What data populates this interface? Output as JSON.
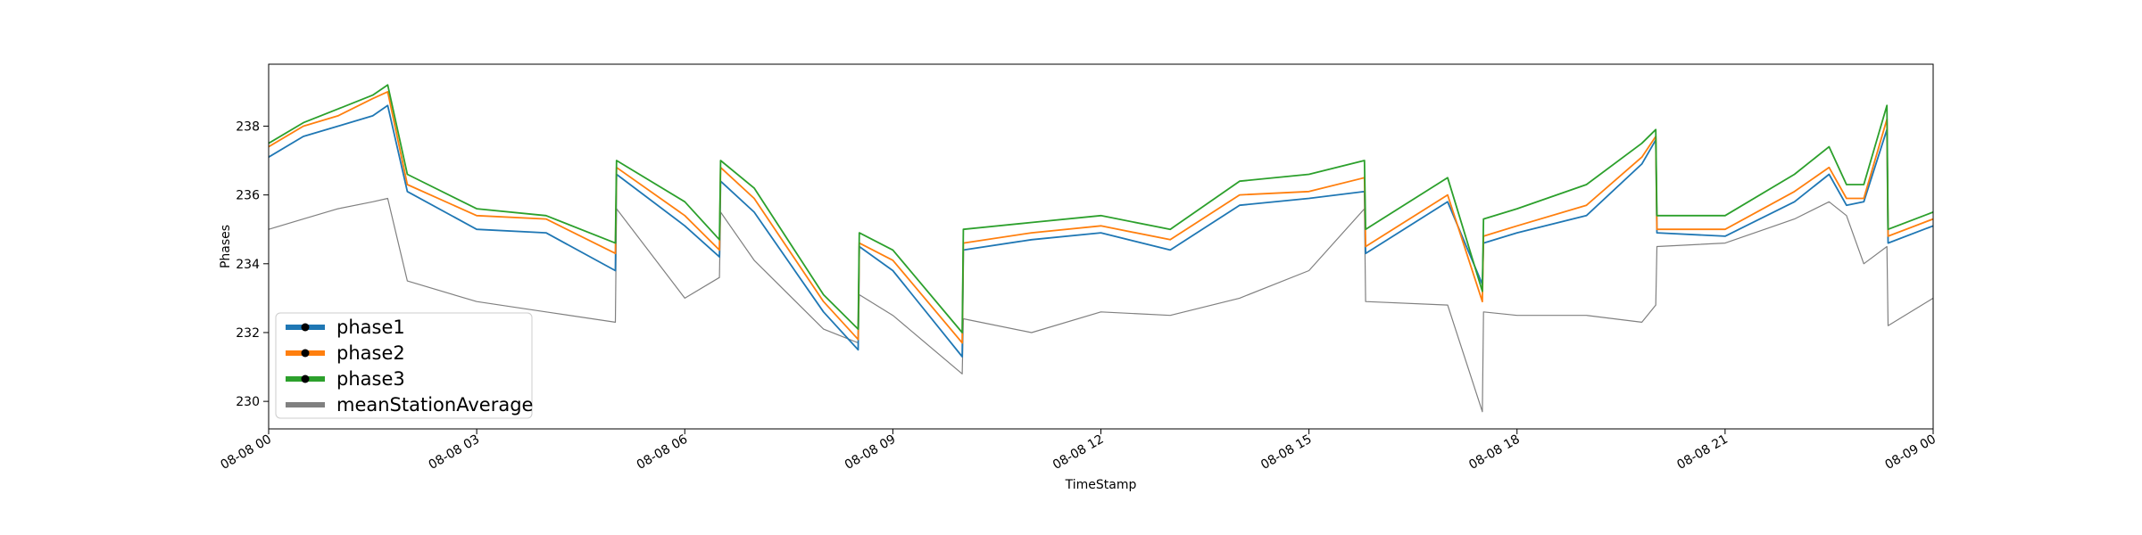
{
  "chart_data": {
    "type": "line",
    "title": "",
    "xlabel": "TimeStamp",
    "ylabel": "Phases",
    "x_ticks": [
      "08-08 00",
      "08-08 03",
      "08-08 06",
      "08-08 09",
      "08-08 12",
      "08-08 15",
      "08-08 18",
      "08-08 21",
      "08-09 00"
    ],
    "y_ticks": [
      230,
      232,
      234,
      236,
      238
    ],
    "xlim": [
      "08-08 00:00",
      "08-09 00:00"
    ],
    "ylim": [
      229.2,
      239.8
    ],
    "grid": false,
    "legend_position": "lower-left",
    "x": [
      "08-08 00:00",
      "08-08 00:30",
      "08-08 01:00",
      "08-08 01:30",
      "08-08 01:43",
      "08-08 02:00",
      "08-08 03:00",
      "08-08 04:00",
      "08-08 05:00",
      "08-08 05:01",
      "08-08 06:00",
      "08-08 06:30",
      "08-08 06:31",
      "08-08 07:00",
      "08-08 08:00",
      "08-08 08:30",
      "08-08 08:31",
      "08-08 09:00",
      "08-08 10:00",
      "08-08 10:01",
      "08-08 11:00",
      "08-08 12:00",
      "08-08 13:00",
      "08-08 14:00",
      "08-08 15:00",
      "08-08 15:48",
      "08-08 15:49",
      "08-08 17:00",
      "08-08 17:30",
      "08-08 17:31",
      "08-08 18:00",
      "08-08 19:00",
      "08-08 19:48",
      "08-08 20:00",
      "08-08 20:01",
      "08-08 21:00",
      "08-08 22:00",
      "08-08 22:30",
      "08-08 22:45",
      "08-08 23:00",
      "08-08 23:20",
      "08-08 23:21",
      "08-09 00:00"
    ],
    "series": [
      {
        "name": "phase1",
        "color": "#1f77b4",
        "marker": "circle",
        "values": [
          237.1,
          237.7,
          238.0,
          238.3,
          238.6,
          236.1,
          235.0,
          234.9,
          233.8,
          236.6,
          235.1,
          234.2,
          236.4,
          235.5,
          232.6,
          231.5,
          234.5,
          233.8,
          231.3,
          234.4,
          234.7,
          234.9,
          234.4,
          235.7,
          235.9,
          236.1,
          234.3,
          235.8,
          233.4,
          234.6,
          234.9,
          235.4,
          236.9,
          237.6,
          234.9,
          234.8,
          235.8,
          236.6,
          235.7,
          235.8,
          237.9,
          234.6,
          235.1
        ]
      },
      {
        "name": "phase2",
        "color": "#ff7f0e",
        "marker": "circle",
        "values": [
          237.4,
          238.0,
          238.3,
          238.8,
          239.0,
          236.3,
          235.4,
          235.3,
          234.3,
          236.8,
          235.4,
          234.4,
          236.8,
          235.9,
          232.9,
          231.8,
          234.6,
          234.1,
          231.7,
          234.6,
          234.9,
          235.1,
          234.7,
          236.0,
          236.1,
          236.5,
          234.5,
          236.0,
          232.9,
          234.8,
          235.1,
          235.7,
          237.1,
          237.7,
          235.0,
          235.0,
          236.1,
          236.8,
          235.9,
          235.9,
          238.2,
          234.8,
          235.3
        ]
      },
      {
        "name": "phase3",
        "color": "#2ca02c",
        "marker": "circle",
        "values": [
          237.5,
          238.1,
          238.5,
          238.9,
          239.2,
          236.6,
          235.6,
          235.4,
          234.6,
          237.0,
          235.8,
          234.7,
          237.0,
          236.2,
          233.1,
          232.1,
          234.9,
          234.4,
          232.0,
          235.0,
          235.2,
          235.4,
          235.0,
          236.4,
          236.6,
          237.0,
          235.0,
          236.5,
          233.2,
          235.3,
          235.6,
          236.3,
          237.5,
          237.9,
          235.4,
          235.4,
          236.6,
          237.4,
          236.3,
          236.3,
          238.6,
          235.0,
          235.5
        ]
      },
      {
        "name": "meanStationAverage",
        "color": "#808080",
        "marker": "none",
        "values": [
          235.0,
          235.3,
          235.6,
          235.8,
          235.9,
          233.5,
          232.9,
          232.6,
          232.3,
          235.6,
          233.0,
          233.6,
          235.5,
          234.1,
          232.1,
          231.7,
          233.1,
          232.5,
          230.8,
          232.4,
          232.0,
          232.6,
          232.5,
          233.0,
          233.8,
          235.6,
          232.9,
          232.8,
          229.7,
          232.6,
          232.5,
          232.5,
          232.3,
          232.8,
          234.5,
          234.6,
          235.3,
          235.8,
          235.4,
          234.0,
          234.5,
          232.2,
          233.0
        ]
      }
    ]
  }
}
